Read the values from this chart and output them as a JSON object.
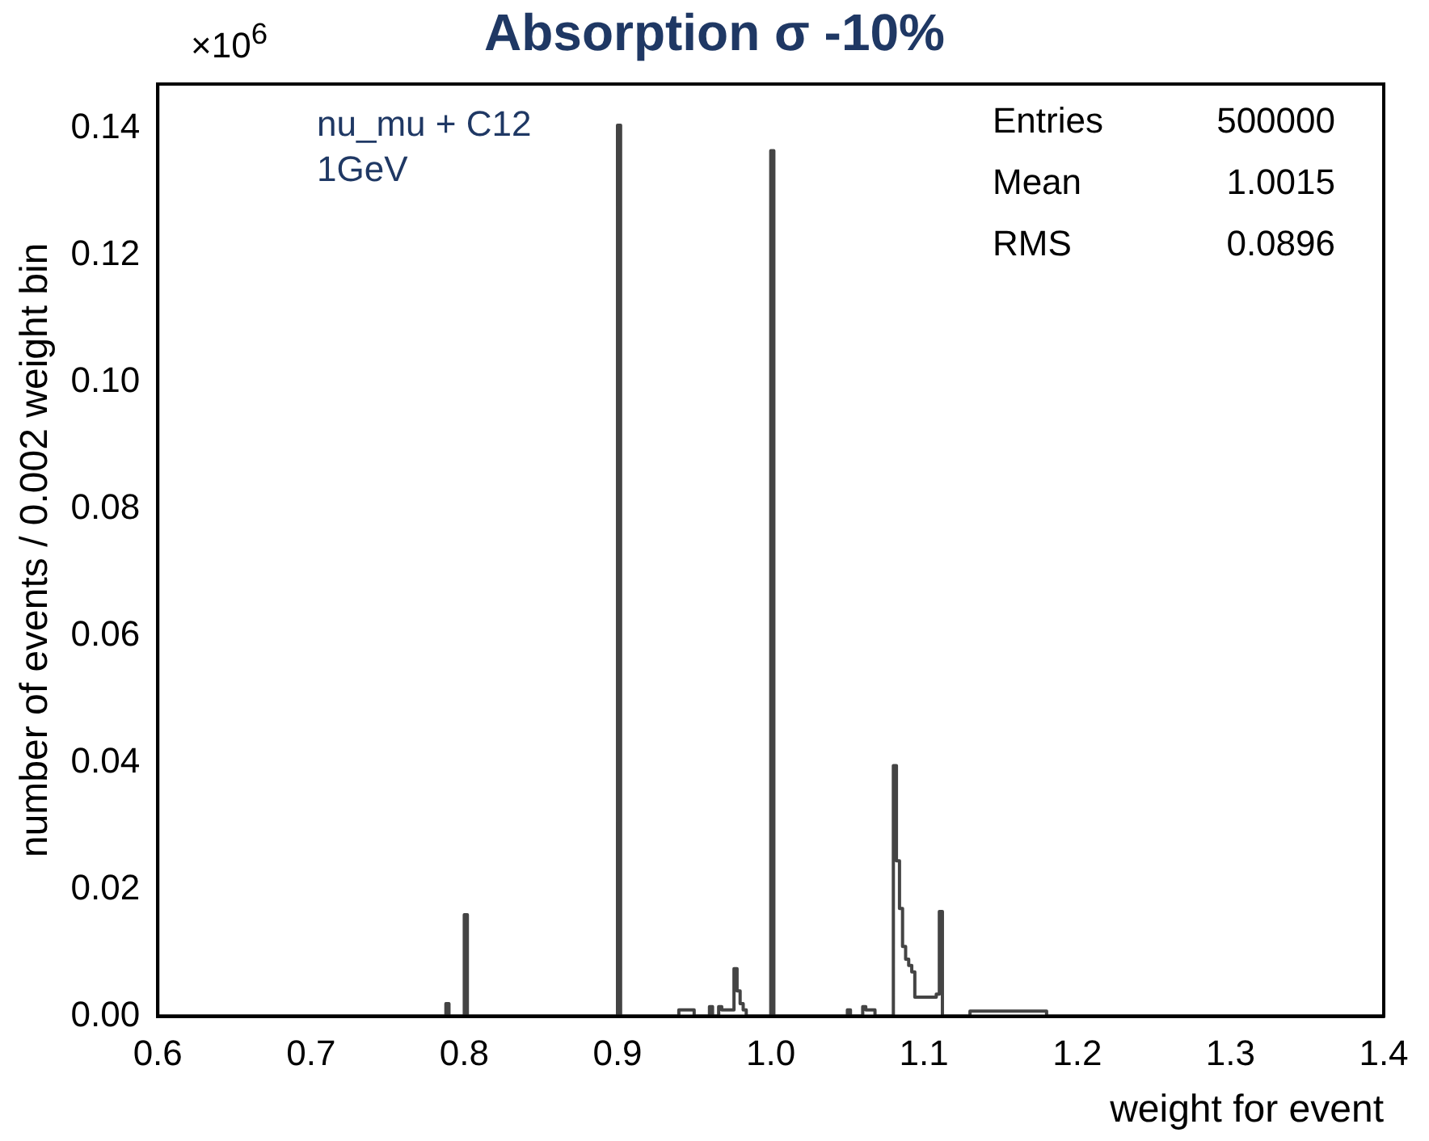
{
  "chart_data": {
    "type": "histogram",
    "title": "Absorption σ -10%",
    "xlabel": "weight for event",
    "ylabel": "number of events / 0.002 weight bin",
    "bins": [
      0.6,
      0.788,
      0.79,
      0.8,
      0.802,
      0.9,
      0.902,
      0.94,
      0.95,
      0.96,
      0.962,
      0.966,
      0.968,
      0.976,
      0.978,
      0.98,
      0.982,
      0.984,
      1.0,
      1.002,
      1.05,
      1.052,
      1.06,
      1.062,
      1.068,
      1.08,
      1.082,
      1.084,
      1.086,
      1.088,
      1.09,
      1.092,
      1.094,
      1.108,
      1.11,
      1.112,
      1.13,
      1.18,
      1.4
    ],
    "values": [
      0,
      0.002,
      0,
      0.016,
      0,
      0.1405,
      0,
      0.001,
      0,
      0.0015,
      0,
      0.0015,
      0.001,
      0.0075,
      0.004,
      0.002,
      0.001,
      0,
      0.1365,
      0,
      0.001,
      0,
      0.0015,
      0.001,
      0,
      0.0395,
      0.0245,
      0.017,
      0.011,
      0.009,
      0.008,
      0.007,
      0.003,
      0.0035,
      0.0165,
      0,
      0.0008,
      0
    ],
    "color": "#444444",
    "xlim": [
      0.6,
      1.4
    ],
    "ylim": [
      0,
      0.147
    ],
    "xticks": [
      0.6,
      0.7,
      0.8,
      0.9,
      {
        "value": 1,
        "label": "1.0"
      },
      1.1,
      1.2,
      1.3,
      1.4
    ],
    "yticks": [
      {
        "value": 0,
        "label": "0.00"
      },
      {
        "value": 0.02,
        "label": "0.02"
      },
      {
        "value": 0.04,
        "label": "0.04"
      },
      {
        "value": 0.06,
        "label": "0.06"
      },
      {
        "value": 0.08,
        "label": "0.08"
      },
      {
        "value": 0.1,
        "label": "0.10"
      },
      {
        "value": 0.12,
        "label": "0.12"
      },
      {
        "value": 0.14,
        "label": "0.14"
      }
    ],
    "grid": false,
    "legend": false,
    "annotations": [
      "×10$^{6}$",
      "nu_mu + C12",
      "1GeV",
      "Entries",
      "500000",
      "Mean",
      "1.0015",
      "RMS",
      "0.0896"
    ]
  }
}
